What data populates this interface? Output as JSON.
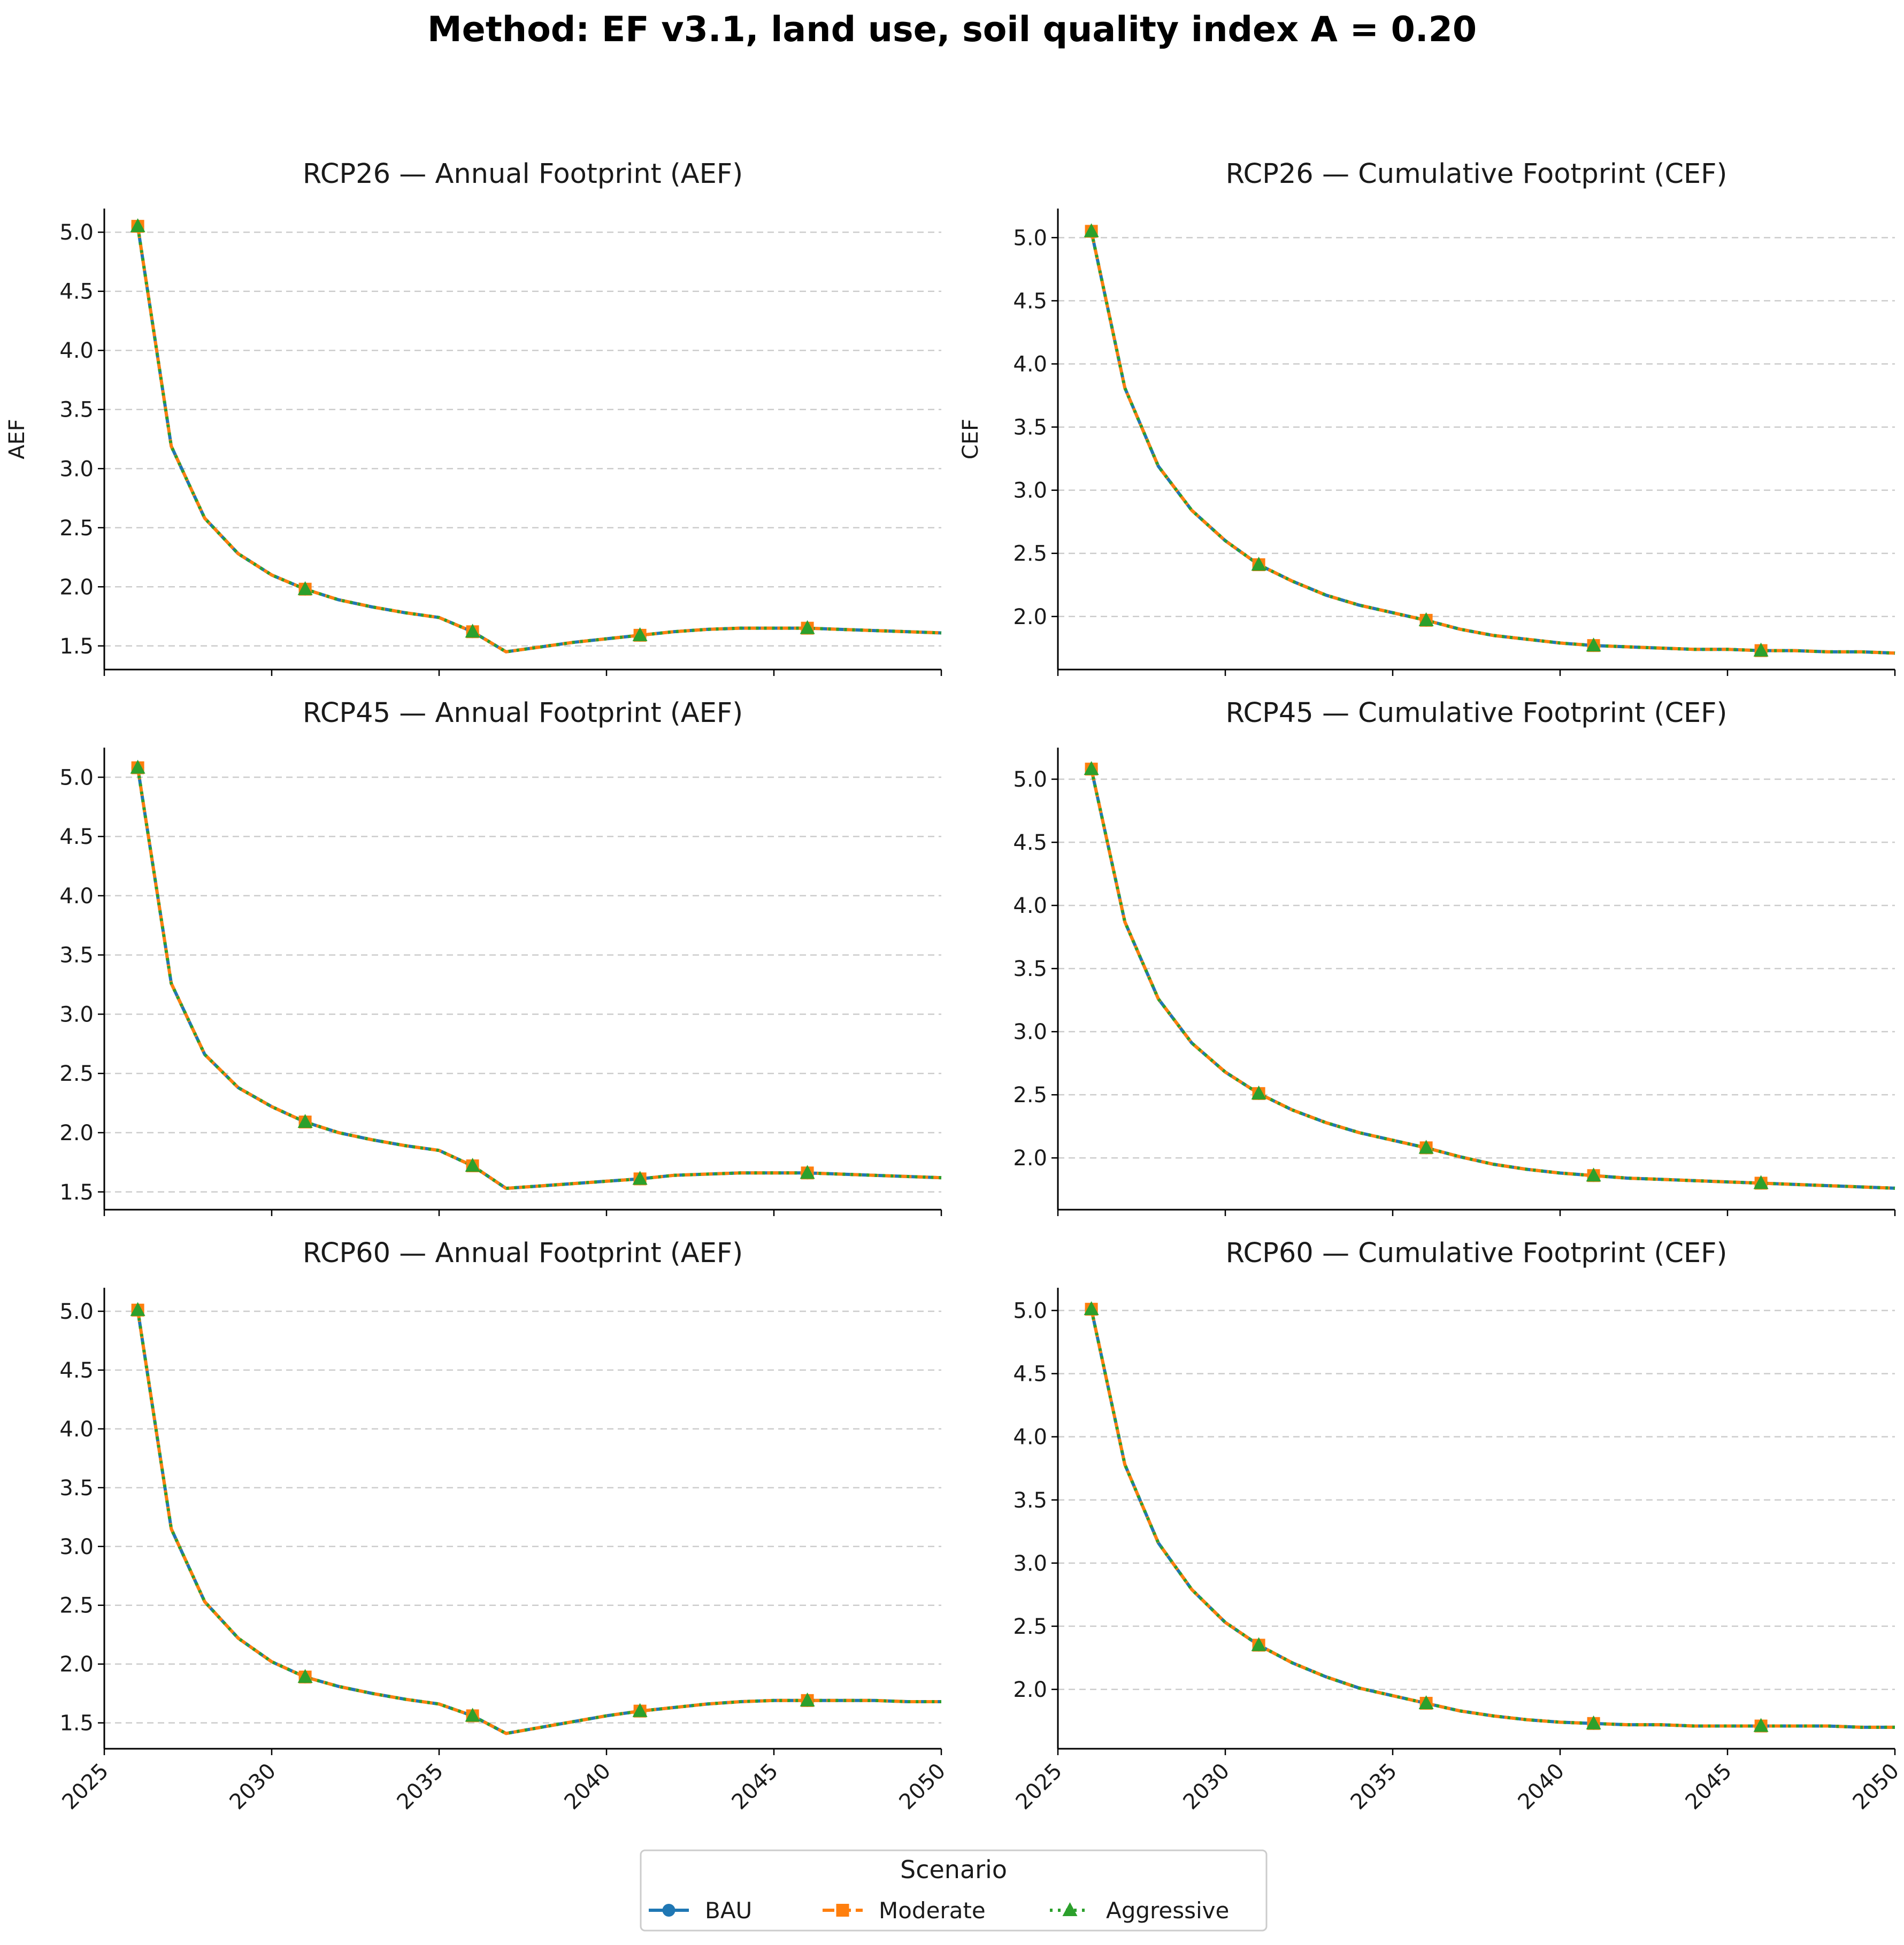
{
  "figure": {
    "title": "Method: EF v3.1, land use, soil quality index A = 0.20"
  },
  "colors": {
    "BAU": "#1f77b4",
    "Moderate": "#ff7f0e",
    "Aggressive": "#2ca02c",
    "grid": "#cccccc",
    "axis": "#000000"
  },
  "legend": {
    "title": "Scenario",
    "entries": [
      "BAU",
      "Moderate",
      "Aggressive"
    ]
  },
  "chart_data": [
    {
      "type": "line",
      "title": "RCP26 — Annual Footprint (AEF)",
      "xlabel": "",
      "ylabel": "AEF",
      "xlim": [
        2025,
        2050
      ],
      "ylim": [
        1.3,
        5.2
      ],
      "xticks": [
        2025,
        2030,
        2035,
        2040,
        2045,
        2050
      ],
      "yticks": [
        1.5,
        2.0,
        2.5,
        3.0,
        3.5,
        4.0,
        4.5,
        5.0
      ],
      "grid": "y-dashed",
      "marker_every": 5,
      "x": [
        2026,
        2027,
        2028,
        2029,
        2030,
        2031,
        2032,
        2033,
        2034,
        2035,
        2036,
        2037,
        2038,
        2039,
        2040,
        2041,
        2042,
        2043,
        2044,
        2045,
        2046,
        2047,
        2048,
        2049,
        2050
      ],
      "series": [
        {
          "name": "BAU",
          "values": [
            5.05,
            3.19,
            2.58,
            2.28,
            2.1,
            1.98,
            1.89,
            1.83,
            1.78,
            1.74,
            1.62,
            1.45,
            1.49,
            1.53,
            1.56,
            1.59,
            1.62,
            1.64,
            1.65,
            1.65,
            1.65,
            1.64,
            1.63,
            1.62,
            1.61
          ]
        },
        {
          "name": "Moderate",
          "values": [
            5.05,
            3.19,
            2.58,
            2.28,
            2.1,
            1.98,
            1.89,
            1.83,
            1.78,
            1.74,
            1.62,
            1.45,
            1.49,
            1.53,
            1.56,
            1.59,
            1.62,
            1.64,
            1.65,
            1.65,
            1.65,
            1.64,
            1.63,
            1.62,
            1.61
          ]
        },
        {
          "name": "Aggressive",
          "values": [
            5.05,
            3.19,
            2.58,
            2.28,
            2.1,
            1.98,
            1.89,
            1.83,
            1.78,
            1.74,
            1.62,
            1.45,
            1.49,
            1.53,
            1.56,
            1.59,
            1.62,
            1.64,
            1.65,
            1.65,
            1.65,
            1.64,
            1.63,
            1.62,
            1.61
          ]
        }
      ]
    },
    {
      "type": "line",
      "title": "RCP26 — Cumulative Footprint (CEF)",
      "xlabel": "",
      "ylabel": "CEF",
      "xlim": [
        2025,
        2050
      ],
      "ylim": [
        1.58,
        5.23
      ],
      "xticks": [
        2025,
        2030,
        2035,
        2040,
        2045,
        2050
      ],
      "yticks": [
        2.0,
        2.5,
        3.0,
        3.5,
        4.0,
        4.5,
        5.0
      ],
      "grid": "y-dashed",
      "marker_every": 5,
      "x": [
        2026,
        2027,
        2028,
        2029,
        2030,
        2031,
        2032,
        2033,
        2034,
        2035,
        2036,
        2037,
        2038,
        2039,
        2040,
        2041,
        2042,
        2043,
        2044,
        2045,
        2046,
        2047,
        2048,
        2049,
        2050
      ],
      "series": [
        {
          "name": "BAU",
          "values": [
            5.05,
            3.81,
            3.19,
            2.84,
            2.6,
            2.41,
            2.28,
            2.17,
            2.09,
            2.03,
            1.97,
            1.9,
            1.85,
            1.82,
            1.79,
            1.77,
            1.76,
            1.75,
            1.74,
            1.74,
            1.73,
            1.73,
            1.72,
            1.72,
            1.71
          ]
        },
        {
          "name": "Moderate",
          "values": [
            5.05,
            3.81,
            3.19,
            2.84,
            2.6,
            2.41,
            2.28,
            2.17,
            2.09,
            2.03,
            1.97,
            1.9,
            1.85,
            1.82,
            1.79,
            1.77,
            1.76,
            1.75,
            1.74,
            1.74,
            1.73,
            1.73,
            1.72,
            1.72,
            1.71
          ]
        },
        {
          "name": "Aggressive",
          "values": [
            5.05,
            3.81,
            3.19,
            2.84,
            2.6,
            2.41,
            2.28,
            2.17,
            2.09,
            2.03,
            1.97,
            1.9,
            1.85,
            1.82,
            1.79,
            1.77,
            1.76,
            1.75,
            1.74,
            1.74,
            1.73,
            1.73,
            1.72,
            1.72,
            1.71
          ]
        }
      ]
    },
    {
      "type": "line",
      "title": "RCP45 — Annual Footprint (AEF)",
      "xlabel": "",
      "ylabel": "",
      "xlim": [
        2025,
        2050
      ],
      "ylim": [
        1.35,
        5.25
      ],
      "xticks": [
        2025,
        2030,
        2035,
        2040,
        2045,
        2050
      ],
      "yticks": [
        1.5,
        2.0,
        2.5,
        3.0,
        3.5,
        4.0,
        4.5,
        5.0
      ],
      "grid": "y-dashed",
      "marker_every": 5,
      "x": [
        2026,
        2027,
        2028,
        2029,
        2030,
        2031,
        2032,
        2033,
        2034,
        2035,
        2036,
        2037,
        2038,
        2039,
        2040,
        2041,
        2042,
        2043,
        2044,
        2045,
        2046,
        2047,
        2048,
        2049,
        2050
      ],
      "series": [
        {
          "name": "BAU",
          "values": [
            5.08,
            3.26,
            2.66,
            2.38,
            2.22,
            2.09,
            2.0,
            1.94,
            1.89,
            1.85,
            1.72,
            1.53,
            1.55,
            1.57,
            1.59,
            1.61,
            1.64,
            1.65,
            1.66,
            1.66,
            1.66,
            1.65,
            1.64,
            1.63,
            1.62
          ]
        },
        {
          "name": "Moderate",
          "values": [
            5.08,
            3.26,
            2.66,
            2.38,
            2.22,
            2.09,
            2.0,
            1.94,
            1.89,
            1.85,
            1.72,
            1.53,
            1.55,
            1.57,
            1.59,
            1.61,
            1.64,
            1.65,
            1.66,
            1.66,
            1.66,
            1.65,
            1.64,
            1.63,
            1.62
          ]
        },
        {
          "name": "Aggressive",
          "values": [
            5.08,
            3.26,
            2.66,
            2.38,
            2.22,
            2.09,
            2.0,
            1.94,
            1.89,
            1.85,
            1.72,
            1.53,
            1.55,
            1.57,
            1.59,
            1.61,
            1.64,
            1.65,
            1.66,
            1.66,
            1.66,
            1.65,
            1.64,
            1.63,
            1.62
          ]
        }
      ]
    },
    {
      "type": "line",
      "title": "RCP45 — Cumulative Footprint (CEF)",
      "xlabel": "",
      "ylabel": "",
      "xlim": [
        2025,
        2050
      ],
      "ylim": [
        1.59,
        5.25
      ],
      "xticks": [
        2025,
        2030,
        2035,
        2040,
        2045,
        2050
      ],
      "yticks": [
        2.0,
        2.5,
        3.0,
        3.5,
        4.0,
        4.5,
        5.0
      ],
      "grid": "y-dashed",
      "marker_every": 5,
      "x": [
        2026,
        2027,
        2028,
        2029,
        2030,
        2031,
        2032,
        2033,
        2034,
        2035,
        2036,
        2037,
        2038,
        2039,
        2040,
        2041,
        2042,
        2043,
        2044,
        2045,
        2046,
        2047,
        2048,
        2049,
        2050
      ],
      "series": [
        {
          "name": "BAU",
          "values": [
            5.08,
            3.87,
            3.26,
            2.91,
            2.68,
            2.51,
            2.38,
            2.28,
            2.2,
            2.14,
            2.08,
            2.01,
            1.95,
            1.91,
            1.88,
            1.86,
            1.84,
            1.83,
            1.82,
            1.81,
            1.8,
            1.79,
            1.78,
            1.77,
            1.76
          ]
        },
        {
          "name": "Moderate",
          "values": [
            5.08,
            3.87,
            3.26,
            2.91,
            2.68,
            2.51,
            2.38,
            2.28,
            2.2,
            2.14,
            2.08,
            2.01,
            1.95,
            1.91,
            1.88,
            1.86,
            1.84,
            1.83,
            1.82,
            1.81,
            1.8,
            1.79,
            1.78,
            1.77,
            1.76
          ]
        },
        {
          "name": "Aggressive",
          "values": [
            5.08,
            3.87,
            3.26,
            2.91,
            2.68,
            2.51,
            2.38,
            2.28,
            2.2,
            2.14,
            2.08,
            2.01,
            1.95,
            1.91,
            1.88,
            1.86,
            1.84,
            1.83,
            1.82,
            1.81,
            1.8,
            1.79,
            1.78,
            1.77,
            1.76
          ]
        }
      ]
    },
    {
      "type": "line",
      "title": "RCP60 — Annual Footprint (AEF)",
      "xlabel": "",
      "ylabel": "",
      "xlim": [
        2025,
        2050
      ],
      "ylim": [
        1.28,
        5.2
      ],
      "xticks": [
        2025,
        2030,
        2035,
        2040,
        2045,
        2050
      ],
      "yticks": [
        1.5,
        2.0,
        2.5,
        3.0,
        3.5,
        4.0,
        4.5,
        5.0
      ],
      "grid": "y-dashed",
      "marker_every": 5,
      "x": [
        2026,
        2027,
        2028,
        2029,
        2030,
        2031,
        2032,
        2033,
        2034,
        2035,
        2036,
        2037,
        2038,
        2039,
        2040,
        2041,
        2042,
        2043,
        2044,
        2045,
        2046,
        2047,
        2048,
        2049,
        2050
      ],
      "series": [
        {
          "name": "BAU",
          "values": [
            5.01,
            3.15,
            2.53,
            2.22,
            2.02,
            1.89,
            1.81,
            1.75,
            1.7,
            1.66,
            1.56,
            1.41,
            1.46,
            1.51,
            1.56,
            1.6,
            1.63,
            1.66,
            1.68,
            1.69,
            1.69,
            1.69,
            1.69,
            1.68,
            1.68
          ]
        },
        {
          "name": "Moderate",
          "values": [
            5.01,
            3.15,
            2.53,
            2.22,
            2.02,
            1.89,
            1.81,
            1.75,
            1.7,
            1.66,
            1.56,
            1.41,
            1.46,
            1.51,
            1.56,
            1.6,
            1.63,
            1.66,
            1.68,
            1.69,
            1.69,
            1.69,
            1.69,
            1.68,
            1.68
          ]
        },
        {
          "name": "Aggressive",
          "values": [
            5.01,
            3.15,
            2.53,
            2.22,
            2.02,
            1.89,
            1.81,
            1.75,
            1.7,
            1.66,
            1.56,
            1.41,
            1.46,
            1.51,
            1.56,
            1.6,
            1.63,
            1.66,
            1.68,
            1.69,
            1.69,
            1.69,
            1.69,
            1.68,
            1.68
          ]
        }
      ]
    },
    {
      "type": "line",
      "title": "RCP60 — Cumulative Footprint (CEF)",
      "xlabel": "",
      "ylabel": "",
      "xlim": [
        2025,
        2050
      ],
      "ylim": [
        1.53,
        5.18
      ],
      "xticks": [
        2025,
        2030,
        2035,
        2040,
        2045,
        2050
      ],
      "yticks": [
        2.0,
        2.5,
        3.0,
        3.5,
        4.0,
        4.5,
        5.0
      ],
      "grid": "y-dashed",
      "marker_every": 5,
      "x": [
        2026,
        2027,
        2028,
        2029,
        2030,
        2031,
        2032,
        2033,
        2034,
        2035,
        2036,
        2037,
        2038,
        2039,
        2040,
        2041,
        2042,
        2043,
        2044,
        2045,
        2046,
        2047,
        2048,
        2049,
        2050
      ],
      "series": [
        {
          "name": "BAU",
          "values": [
            5.01,
            3.78,
            3.16,
            2.79,
            2.53,
            2.35,
            2.21,
            2.1,
            2.01,
            1.95,
            1.89,
            1.83,
            1.79,
            1.76,
            1.74,
            1.73,
            1.72,
            1.72,
            1.71,
            1.71,
            1.71,
            1.71,
            1.71,
            1.7,
            1.7
          ]
        },
        {
          "name": "Moderate",
          "values": [
            5.01,
            3.78,
            3.16,
            2.79,
            2.53,
            2.35,
            2.21,
            2.1,
            2.01,
            1.95,
            1.89,
            1.83,
            1.79,
            1.76,
            1.74,
            1.73,
            1.72,
            1.72,
            1.71,
            1.71,
            1.71,
            1.71,
            1.71,
            1.7,
            1.7
          ]
        },
        {
          "name": "Aggressive",
          "values": [
            5.01,
            3.78,
            3.16,
            2.79,
            2.53,
            2.35,
            2.21,
            2.1,
            2.01,
            1.95,
            1.89,
            1.83,
            1.79,
            1.76,
            1.74,
            1.73,
            1.72,
            1.72,
            1.71,
            1.71,
            1.71,
            1.71,
            1.71,
            1.7,
            1.7
          ]
        }
      ]
    }
  ]
}
